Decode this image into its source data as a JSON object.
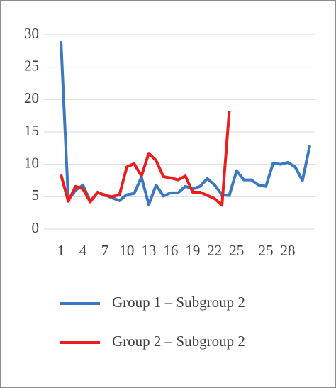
{
  "chart_data": {
    "type": "line",
    "categories": [
      "1",
      null,
      null,
      "4",
      null,
      null,
      "7",
      null,
      null,
      "10",
      null,
      null,
      "13",
      null,
      null,
      "16",
      null,
      null,
      "19",
      null,
      null,
      "22",
      null,
      null,
      "25",
      null,
      null,
      null,
      "25",
      null,
      null,
      "28",
      null,
      null,
      null
    ],
    "series": [
      {
        "name": "Group 1 – Subgroup 2",
        "color": "#3a78c0",
        "values": [
          29,
          4.5,
          6,
          6.8,
          4.3,
          5.6,
          5.3,
          4.8,
          4.4,
          5.3,
          5.5,
          8,
          3.8,
          6.8,
          5.1,
          5.6,
          5.6,
          6.6,
          6.2,
          6.6,
          7.8,
          6.8,
          5.3,
          5.2,
          9,
          7.6,
          7.6,
          6.8,
          6.6,
          10.2,
          10,
          10.3,
          9.6,
          7.5,
          12.9
        ]
      },
      {
        "name": "Group 2 – Subgroup 2",
        "color": "#ee1c1c",
        "values": [
          8.4,
          4.3,
          6.6,
          6.2,
          4.2,
          5.7,
          5.2,
          5,
          5.3,
          9.6,
          10.1,
          8.2,
          11.7,
          10.6,
          8.1,
          7.9,
          7.6,
          8.2,
          5.7,
          5.7,
          5.2,
          4.7,
          3.7,
          18.2,
          null,
          null,
          null,
          null,
          null,
          null,
          null,
          null,
          null,
          null,
          null
        ]
      }
    ],
    "ylim": [
      0,
      30
    ],
    "yticks": [
      0,
      5,
      10,
      15,
      20,
      25,
      30
    ],
    "grid": true,
    "legend": "bottom"
  }
}
